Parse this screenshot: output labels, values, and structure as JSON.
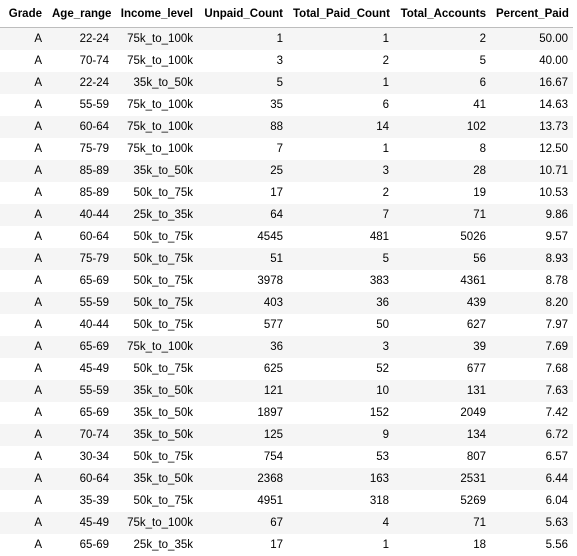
{
  "table": {
    "columns": [
      "Grade",
      "Age_range",
      "Income_level",
      "Unpaid_Count",
      "Total_Paid_Count",
      "Total_Accounts",
      "Percent_Paid"
    ],
    "rows": [
      [
        "A",
        "22-24",
        "75k_to_100k",
        "1",
        "1",
        "2",
        "50.00"
      ],
      [
        "A",
        "70-74",
        "75k_to_100k",
        "3",
        "2",
        "5",
        "40.00"
      ],
      [
        "A",
        "22-24",
        "35k_to_50k",
        "5",
        "1",
        "6",
        "16.67"
      ],
      [
        "A",
        "55-59",
        "75k_to_100k",
        "35",
        "6",
        "41",
        "14.63"
      ],
      [
        "A",
        "60-64",
        "75k_to_100k",
        "88",
        "14",
        "102",
        "13.73"
      ],
      [
        "A",
        "75-79",
        "75k_to_100k",
        "7",
        "1",
        "8",
        "12.50"
      ],
      [
        "A",
        "85-89",
        "35k_to_50k",
        "25",
        "3",
        "28",
        "10.71"
      ],
      [
        "A",
        "85-89",
        "50k_to_75k",
        "17",
        "2",
        "19",
        "10.53"
      ],
      [
        "A",
        "40-44",
        "25k_to_35k",
        "64",
        "7",
        "71",
        "9.86"
      ],
      [
        "A",
        "60-64",
        "50k_to_75k",
        "4545",
        "481",
        "5026",
        "9.57"
      ],
      [
        "A",
        "75-79",
        "50k_to_75k",
        "51",
        "5",
        "56",
        "8.93"
      ],
      [
        "A",
        "65-69",
        "50k_to_75k",
        "3978",
        "383",
        "4361",
        "8.78"
      ],
      [
        "A",
        "55-59",
        "50k_to_75k",
        "403",
        "36",
        "439",
        "8.20"
      ],
      [
        "A",
        "40-44",
        "50k_to_75k",
        "577",
        "50",
        "627",
        "7.97"
      ],
      [
        "A",
        "65-69",
        "75k_to_100k",
        "36",
        "3",
        "39",
        "7.69"
      ],
      [
        "A",
        "45-49",
        "50k_to_75k",
        "625",
        "52",
        "677",
        "7.68"
      ],
      [
        "A",
        "55-59",
        "35k_to_50k",
        "121",
        "10",
        "131",
        "7.63"
      ],
      [
        "A",
        "65-69",
        "35k_to_50k",
        "1897",
        "152",
        "2049",
        "7.42"
      ],
      [
        "A",
        "70-74",
        "35k_to_50k",
        "125",
        "9",
        "134",
        "6.72"
      ],
      [
        "A",
        "30-34",
        "50k_to_75k",
        "754",
        "53",
        "807",
        "6.57"
      ],
      [
        "A",
        "60-64",
        "35k_to_50k",
        "2368",
        "163",
        "2531",
        "6.44"
      ],
      [
        "A",
        "35-39",
        "50k_to_75k",
        "4951",
        "318",
        "5269",
        "6.04"
      ],
      [
        "A",
        "45-49",
        "75k_to_100k",
        "67",
        "4",
        "71",
        "5.63"
      ],
      [
        "A",
        "65-69",
        "25k_to_35k",
        "17",
        "1",
        "18",
        "5.56"
      ]
    ]
  }
}
